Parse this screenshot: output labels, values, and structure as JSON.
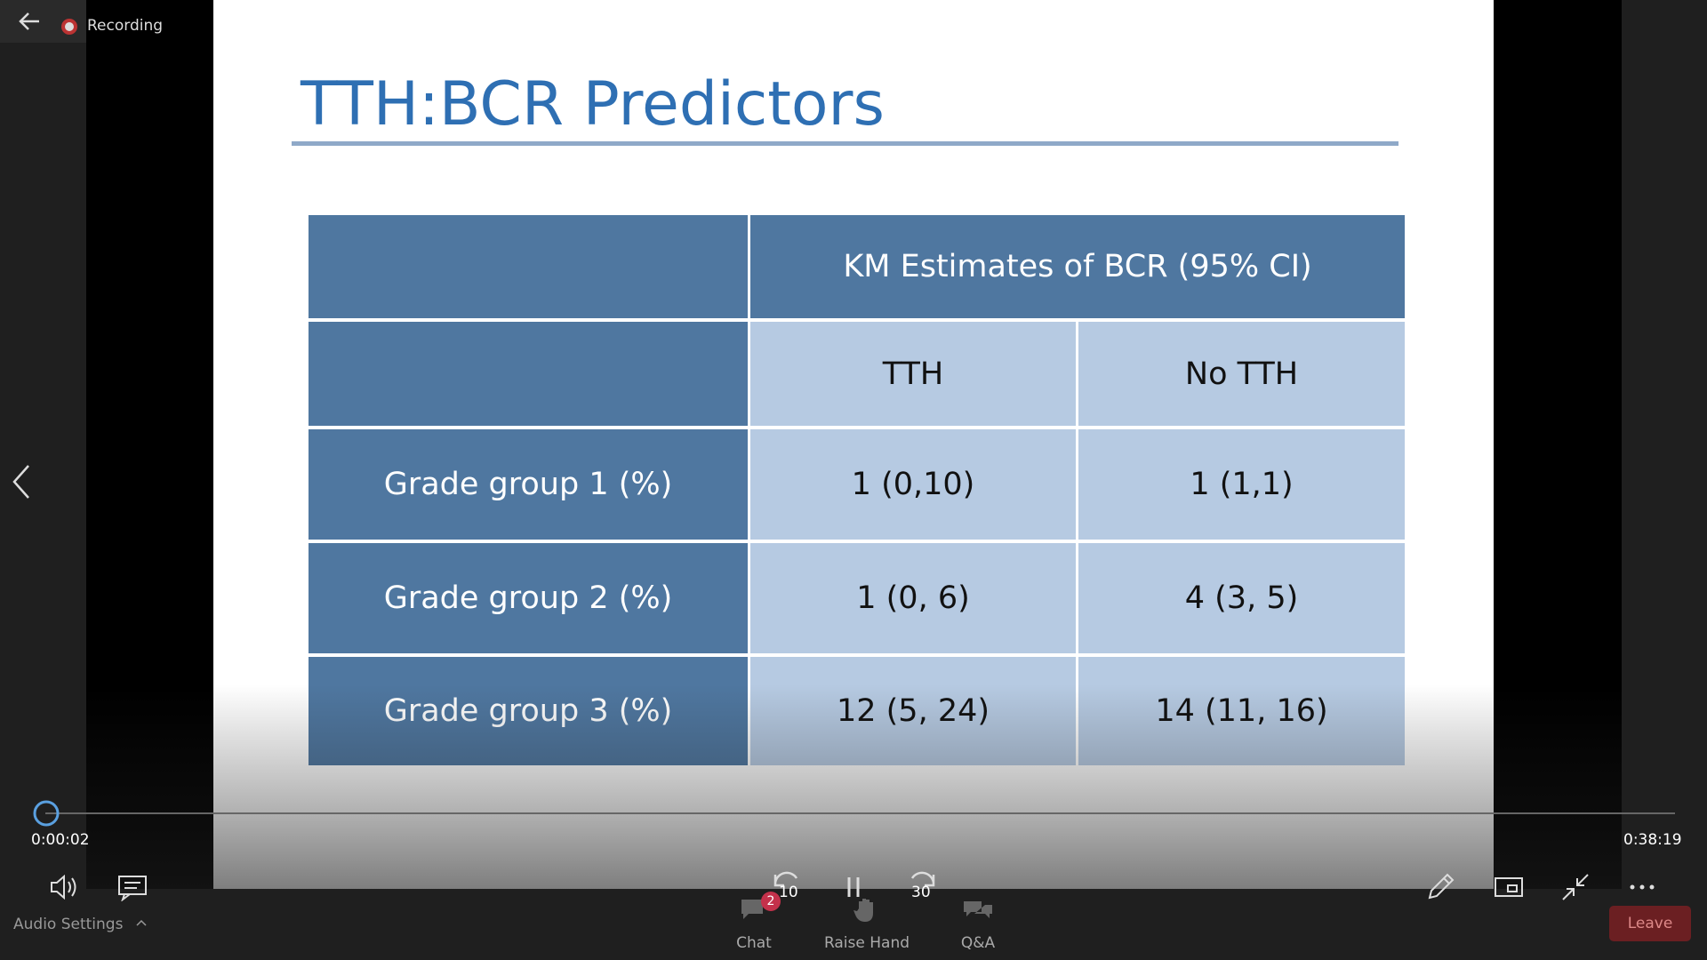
{
  "top_bar": {
    "recording": "Recording"
  },
  "slide": {
    "title": "TTH:BCR Predictors",
    "table": {
      "header": "KM Estimates of BCR (95% CI)",
      "columns": [
        "TTH",
        "No TTH"
      ],
      "rows": [
        [
          "Grade group 1 (%)",
          "1 (0,10)",
          "1 (1,1)"
        ],
        [
          "Grade group 2 (%)",
          "1 (0, 6)",
          "4 (3, 5)"
        ],
        [
          "Grade group 3 (%)",
          "12 (5, 24)",
          "14 (11, 16)"
        ]
      ]
    }
  },
  "player": {
    "elapsed": "0:00:02",
    "duration": "0:38:19",
    "rewind": "10",
    "forward": "30"
  },
  "toolbar": {
    "audio_settings": "Audio Settings",
    "chat": "Chat",
    "chat_badge": "2",
    "raise_hand": "Raise Hand",
    "qa": "Q&A",
    "leave": "Leave"
  }
}
